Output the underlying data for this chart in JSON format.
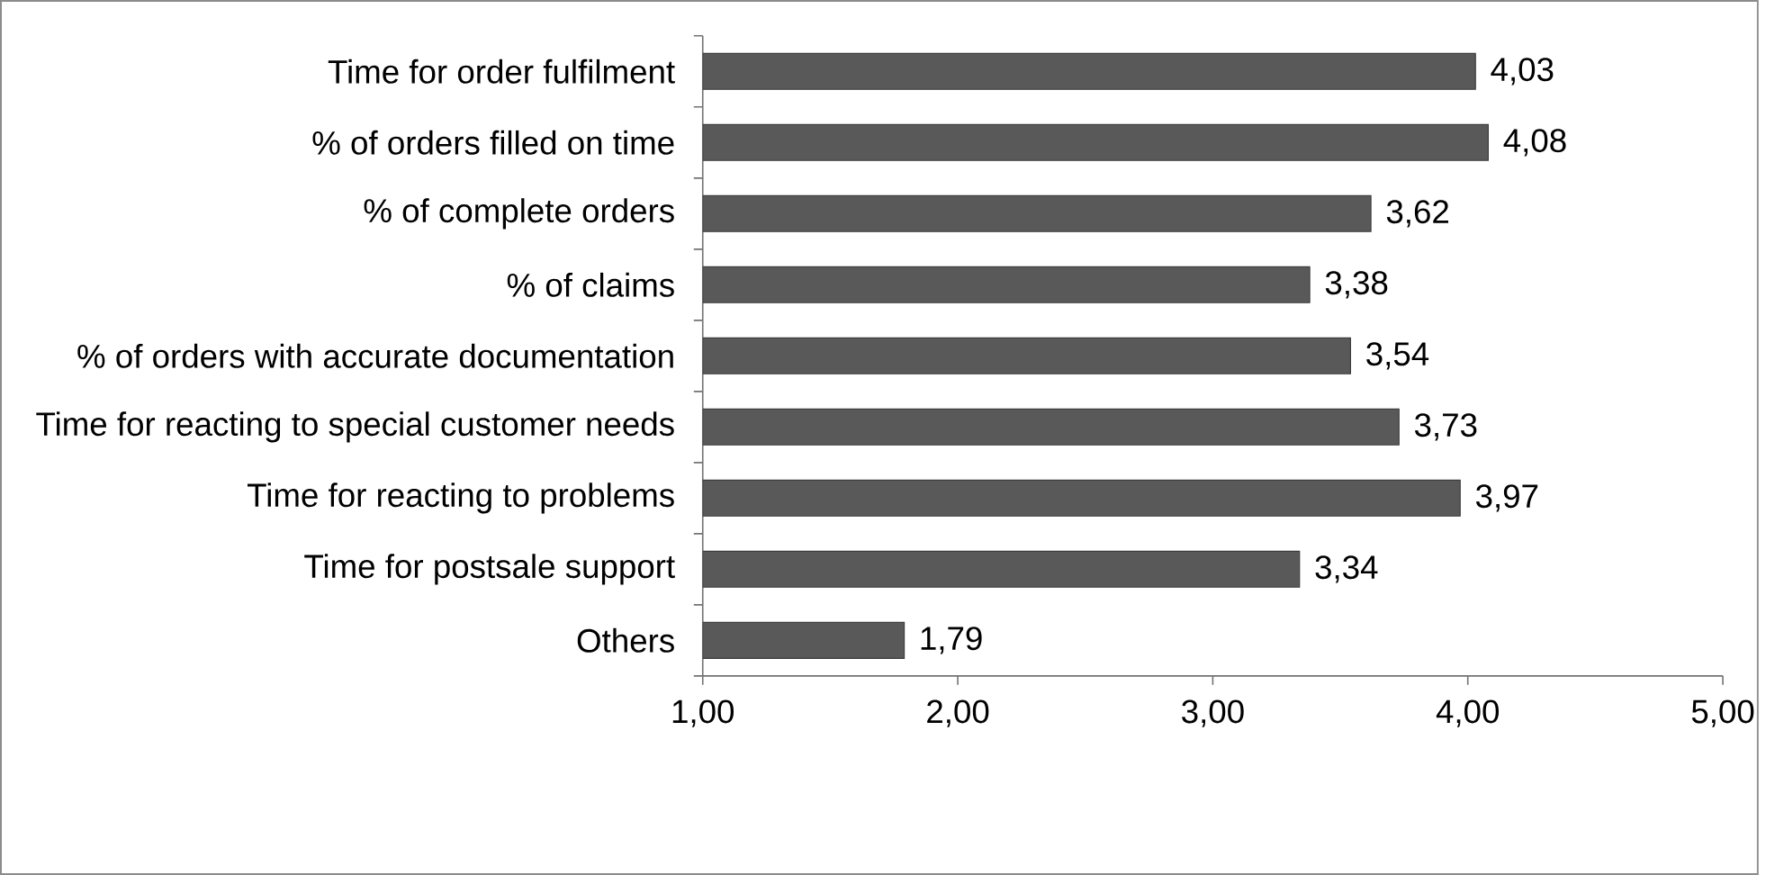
{
  "chart_data": {
    "type": "bar",
    "orientation": "horizontal",
    "categories": [
      "Time for order fulfilment",
      "% of orders filled on time",
      "% of complete orders",
      "% of claims",
      "% of orders with accurate documentation",
      "Time for reacting to special customer needs",
      "Time for reacting to problems",
      "Time for postsale support",
      "Others"
    ],
    "values": [
      4.03,
      4.08,
      3.62,
      3.38,
      3.54,
      3.73,
      3.97,
      3.34,
      1.79
    ],
    "value_labels": [
      "4,03",
      "4,08",
      "3,62",
      "3,38",
      "3,54",
      "3,73",
      "3,97",
      "3,34",
      "1,79"
    ],
    "color": "#595959",
    "xlim": [
      1,
      5
    ],
    "xticks": [
      {
        "value": 1,
        "label": "1,00"
      },
      {
        "value": 2,
        "label": "2,00"
      },
      {
        "value": 3,
        "label": "3,00"
      },
      {
        "value": 4,
        "label": "4,00"
      },
      {
        "value": 5,
        "label": "5,00"
      }
    ],
    "grid": false
  }
}
